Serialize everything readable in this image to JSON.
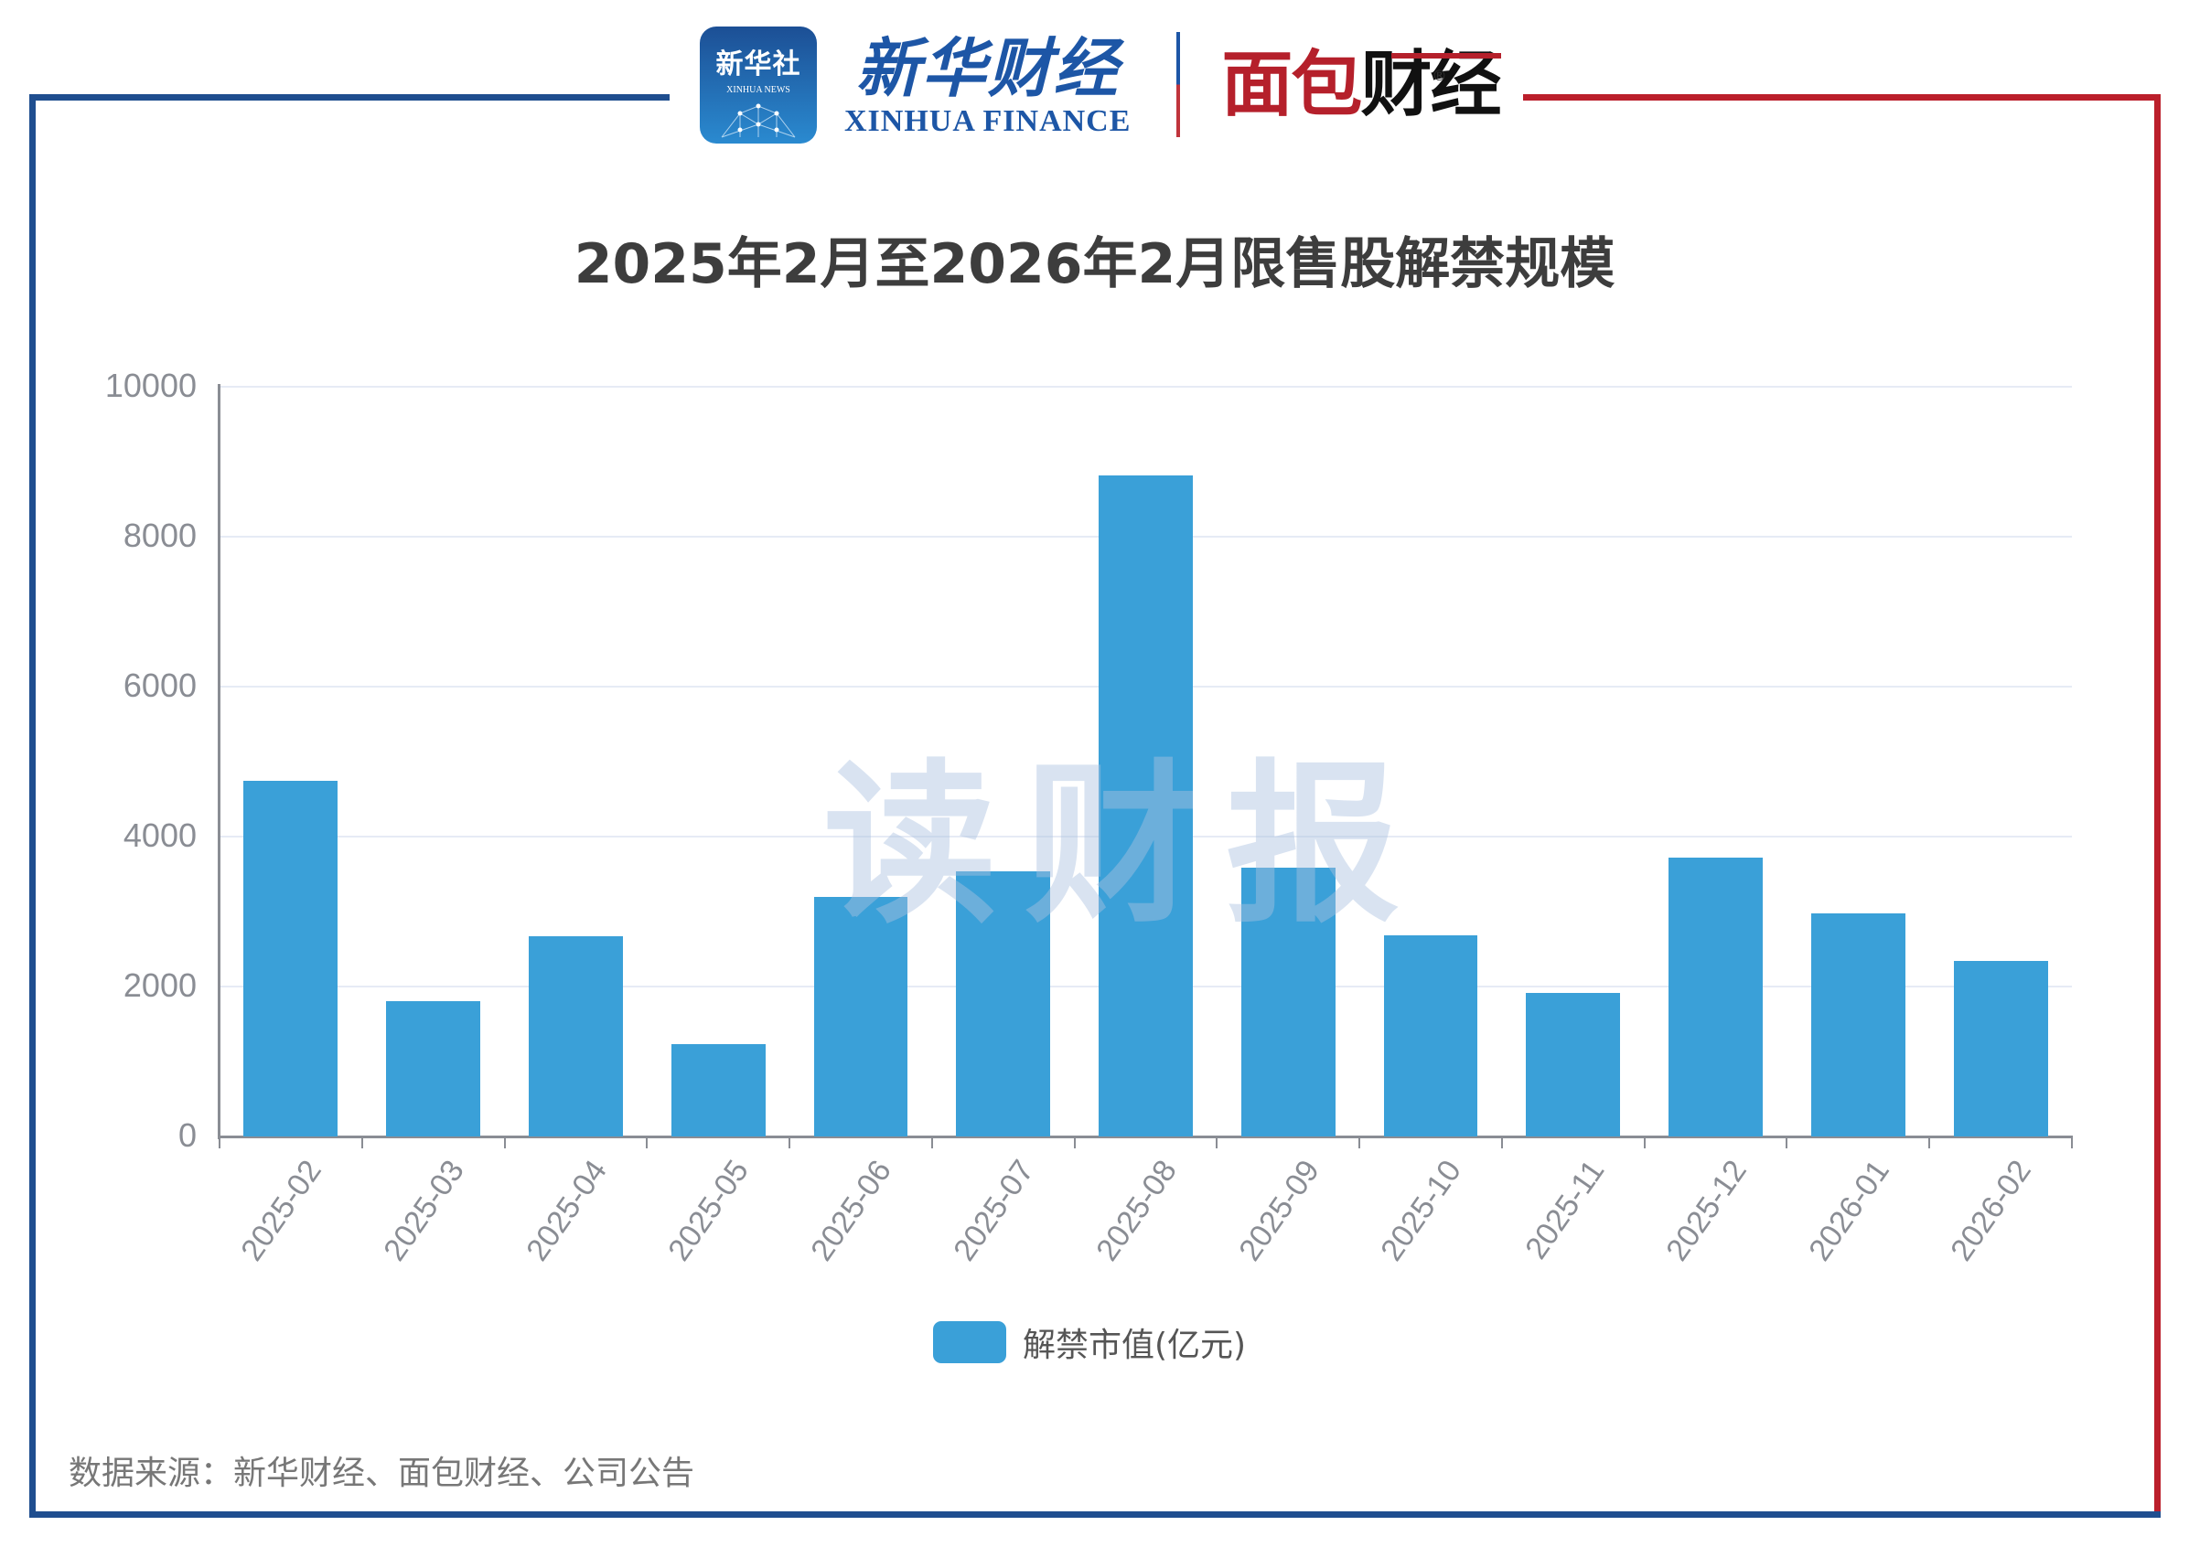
{
  "header": {
    "xinhua_icon": {
      "cn": "新华社",
      "en": "XINHUA NEWS"
    },
    "xinhua_finance": {
      "cn": "新华财经",
      "en": "XINHUA FINANCE"
    },
    "mianbao": {
      "part1": "面包",
      "part2": "财经",
      "reg": "®"
    }
  },
  "colors": {
    "bar": "#3aa0d8",
    "frame_blue": "#1f4e8f",
    "frame_red": "#bb1f2b"
  },
  "watermark": "读财报",
  "source": "数据来源：新华财经、面包财经、公司公告",
  "chart_data": {
    "type": "bar",
    "title": "2025年2月至2026年2月限售股解禁规模",
    "xlabel": "",
    "ylabel": "",
    "ylim": [
      0,
      10000
    ],
    "yticks": [
      0,
      2000,
      4000,
      6000,
      8000,
      10000
    ],
    "grid": true,
    "legend_position": "bottom",
    "categories": [
      "2025-02",
      "2025-03",
      "2025-04",
      "2025-05",
      "2025-06",
      "2025-07",
      "2025-08",
      "2025-09",
      "2025-10",
      "2025-11",
      "2025-12",
      "2026-01",
      "2026-02"
    ],
    "series": [
      {
        "name": "解禁市值(亿元)",
        "values": [
          4740,
          1800,
          2670,
          1230,
          3200,
          3540,
          8820,
          3580,
          2680,
          1910,
          3720,
          2970,
          2340
        ]
      }
    ]
  }
}
